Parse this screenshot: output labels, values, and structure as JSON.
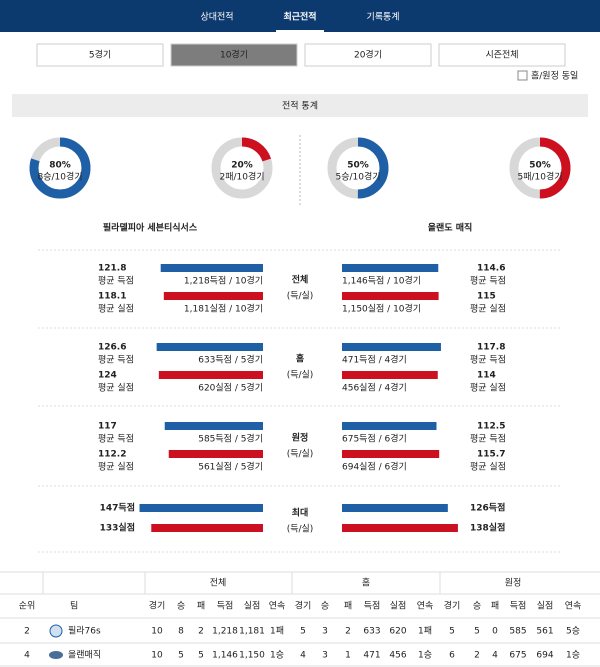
{
  "nav": {
    "tabs": [
      "상대전적",
      "최근전적",
      "기록통계"
    ]
  },
  "filters": {
    "buttons": [
      "5경기",
      "10경기",
      "20경기",
      "시즌전체"
    ],
    "checkbox": "홈/원정 동일"
  },
  "section_title": "전적 통계",
  "donuts": [
    {
      "pct": {
        "value": 80,
        "label": "80%"
      },
      "sub": "8승/10경기",
      "color": "#1f5fa6"
    },
    {
      "pct": {
        "value": 20,
        "label": "20%"
      },
      "sub": "2패/10경기",
      "color": "#cc1020"
    },
    {
      "pct": {
        "value": 50,
        "label": "50%"
      },
      "sub": "5승/10경기",
      "color": "#1f5fa6"
    },
    {
      "pct": {
        "value": 50,
        "label": "50%"
      },
      "sub": "5패/10경기",
      "color": "#cc1020"
    }
  ],
  "teams": [
    "필라델피아 세븐티식서스",
    "올랜도 매직"
  ],
  "stats": [
    {
      "label": "전체",
      "sub": "(득/실)",
      "left": [
        {
          "value": 121.8,
          "label": "평균 득점",
          "detail": "1,218득점 / 10경기"
        },
        {
          "value": 118.1,
          "label": "평균 실점",
          "detail": "1,181실점 / 10경기"
        }
      ],
      "right": [
        {
          "value": 114.6,
          "label": "평균 득점",
          "detail": "1,146득점 / 10경기"
        },
        {
          "value": 115,
          "label": "평균 실점",
          "detail": "1,150실점 / 10경기"
        }
      ]
    },
    {
      "label": "홈",
      "sub": "(득/실)",
      "left": [
        {
          "value": 126.6,
          "label": "평균 득점",
          "detail": "633득점 / 5경기"
        },
        {
          "value": 124,
          "label": "평균 실점",
          "detail": "620실점 / 5경기"
        }
      ],
      "right": [
        {
          "value": 117.8,
          "label": "평균 득점",
          "detail": "471득점 / 4경기"
        },
        {
          "value": 114,
          "label": "평균 실점",
          "detail": "456실점 / 4경기"
        }
      ]
    },
    {
      "label": "원정",
      "sub": "(득/실)",
      "left": [
        {
          "value": 117,
          "label": "평균 득점",
          "detail": "585득점 / 5경기"
        },
        {
          "value": 112.2,
          "label": "평균 실점",
          "detail": "561실점 / 5경기"
        }
      ],
      "right": [
        {
          "value": 112.5,
          "label": "평균 득점",
          "detail": "675득점 / 6경기"
        },
        {
          "value": 115.7,
          "label": "평균 실점",
          "detail": "694실점 / 6경기"
        }
      ]
    }
  ],
  "max": {
    "label": "최대",
    "sub": "(득/실)",
    "left": [
      {
        "value": 147,
        "label": "147득점"
      },
      {
        "value": 133,
        "label": "133실점"
      }
    ],
    "right": [
      {
        "value": 126,
        "label": "126득점"
      },
      {
        "value": 138,
        "label": "138실점"
      }
    ]
  },
  "table": {
    "groups": [
      "전체",
      "홈",
      "원정"
    ],
    "columns": [
      "순위",
      "팀",
      "경기",
      "승",
      "패",
      "득점",
      "실점",
      "연속",
      "경기",
      "승",
      "패",
      "득점",
      "실점",
      "연속",
      "경기",
      "승",
      "패",
      "득점",
      "실점",
      "연속"
    ],
    "rows": [
      [
        "2",
        "필라76s",
        "10",
        "8",
        "2",
        "1,218",
        "1,181",
        "1패",
        "5",
        "3",
        "2",
        "633",
        "620",
        "1패",
        "5",
        "5",
        "0",
        "585",
        "561",
        "5승"
      ],
      [
        "4",
        "올랜매직",
        "10",
        "5",
        "5",
        "1,146",
        "1,150",
        "1승",
        "4",
        "3",
        "1",
        "471",
        "456",
        "1승",
        "6",
        "2",
        "4",
        "675",
        "694",
        "1승"
      ]
    ]
  }
}
